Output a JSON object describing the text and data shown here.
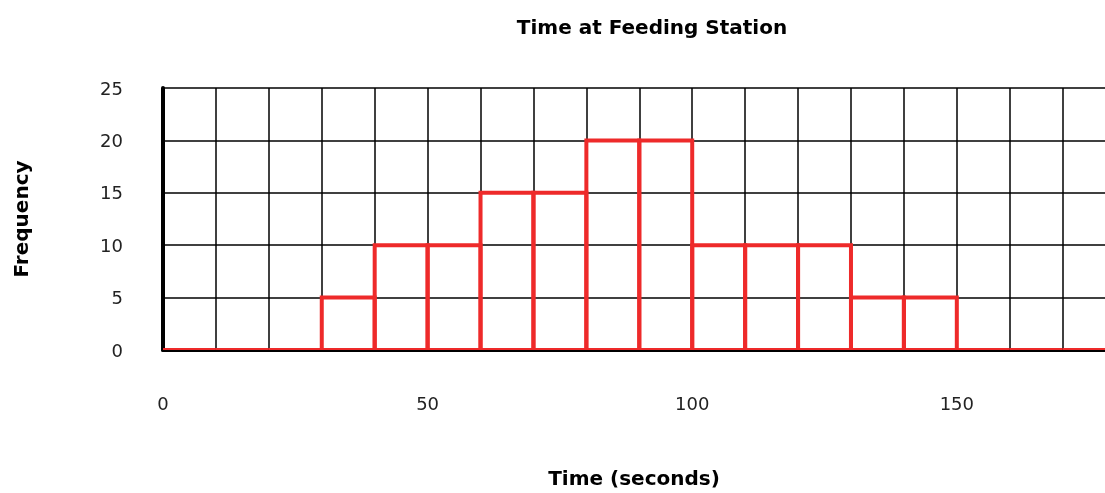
{
  "chart_data": {
    "type": "histogram",
    "title": "Time at Feeding Station",
    "xlabel": "Time (seconds)",
    "ylabel": "Frequency",
    "bins": [
      0,
      10,
      20,
      30,
      40,
      50,
      60,
      70,
      80,
      90,
      100,
      110,
      120,
      130,
      140,
      150,
      160,
      170,
      180
    ],
    "values": [
      0,
      0,
      0,
      5,
      10,
      10,
      15,
      15,
      20,
      20,
      10,
      10,
      10,
      5,
      5,
      0,
      0,
      0
    ],
    "color": "#ee2a2a",
    "xlim": [
      0,
      178
    ],
    "xticks": [
      0,
      {
        "value": 10,
        "label": null
      },
      {
        "value": 20,
        "label": null
      },
      {
        "value": 30,
        "label": null
      },
      {
        "value": 40,
        "label": null
      },
      50,
      {
        "value": 60,
        "label": null
      },
      {
        "value": 70,
        "label": null
      },
      {
        "value": 80,
        "label": null
      },
      {
        "value": 90,
        "label": null
      },
      100,
      {
        "value": 110,
        "label": null
      },
      {
        "value": 120,
        "label": null
      },
      {
        "value": 130,
        "label": null
      },
      {
        "value": 140,
        "label": null
      },
      150,
      {
        "value": 160,
        "label": null
      },
      {
        "value": 170,
        "label": null
      }
    ],
    "ylim": [
      0,
      25
    ],
    "yticks": [
      0,
      5,
      10,
      15,
      20,
      25
    ],
    "grid": true
  }
}
